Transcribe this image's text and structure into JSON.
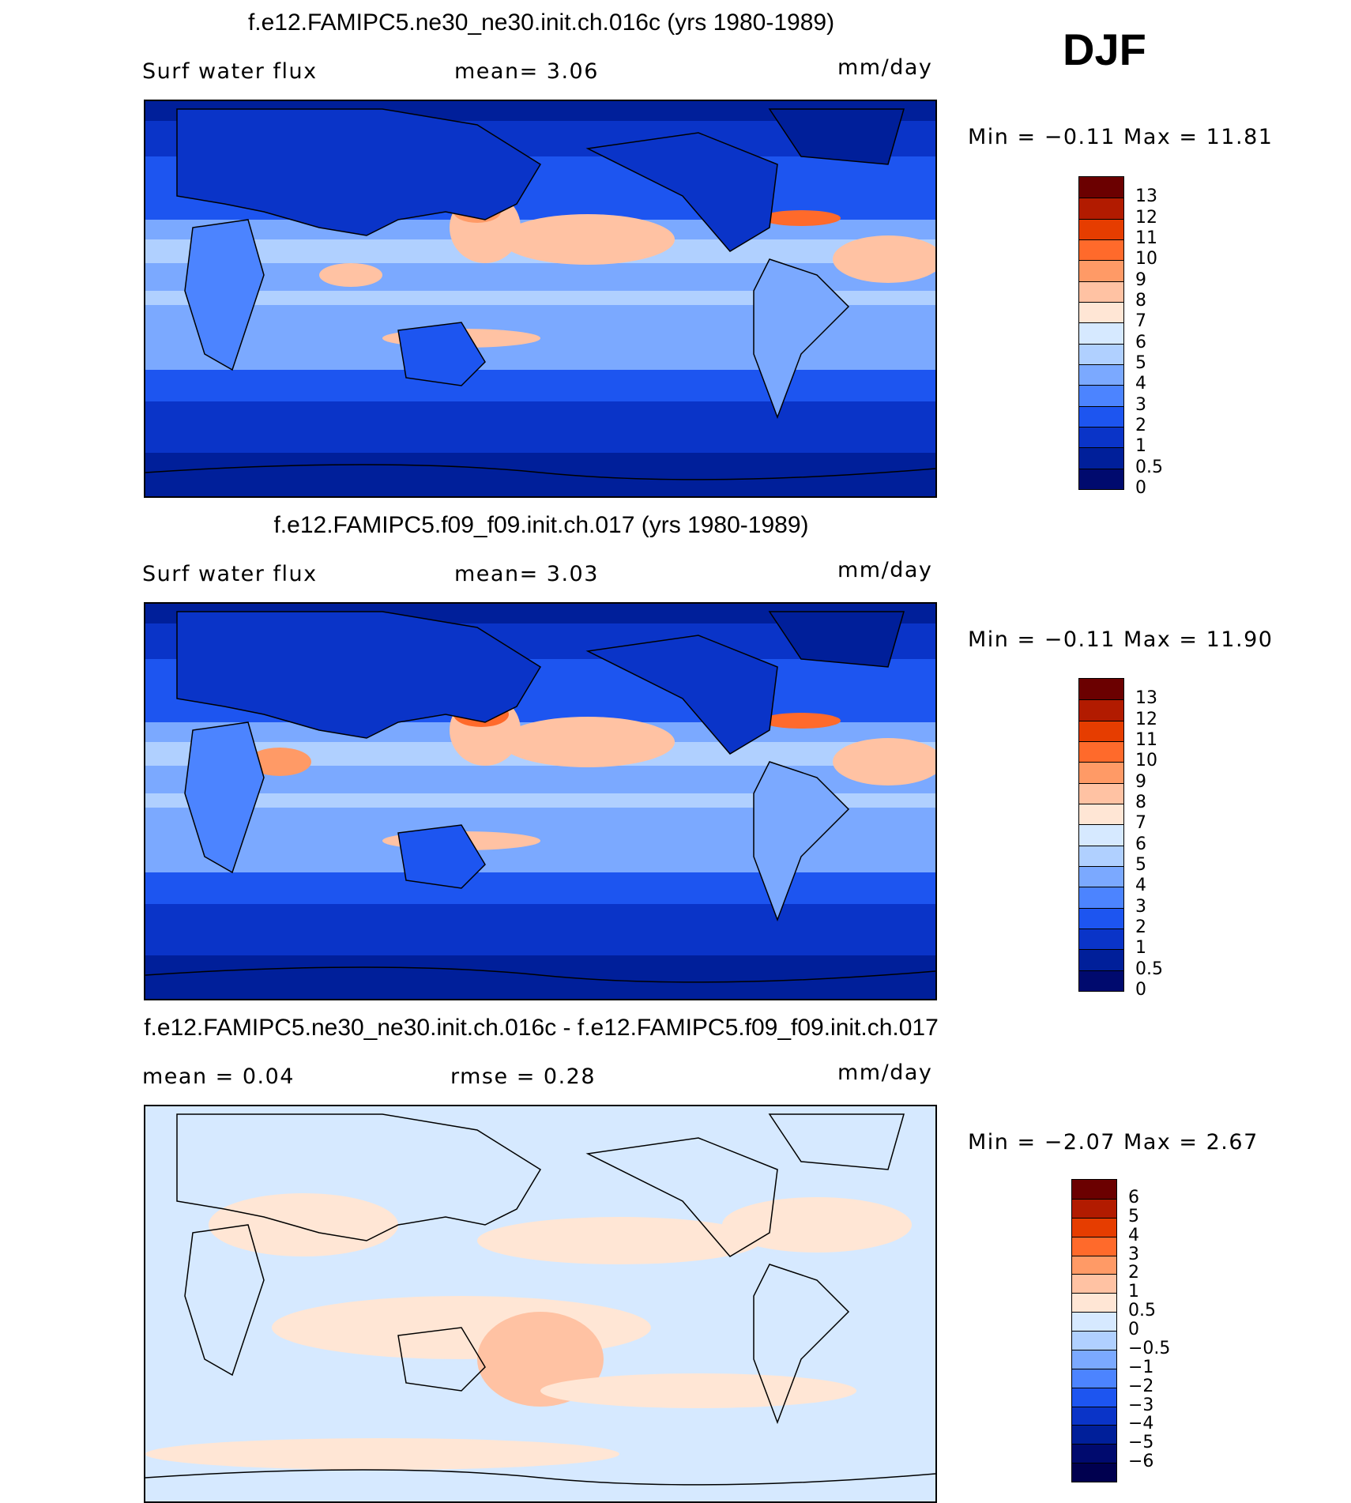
{
  "season": "DJF",
  "panels": [
    {
      "title": "f.e12.FAMIPC5.ne30_ne30.init.ch.016c (yrs 1980-1989)",
      "left_label": "Surf  water  flux",
      "center_label": "mean=    3.06",
      "units": "mm/day",
      "min_max": "Min  =   −0.11  Max  =    11.81",
      "colorbar": {
        "colors": [
          "#6b0000",
          "#b21b00",
          "#e63d00",
          "#ff6a2b",
          "#ff9a66",
          "#ffc2a3",
          "#ffe6d5",
          "#d6e9ff",
          "#b0d0ff",
          "#7ba9ff",
          "#4c84ff",
          "#1d55f0",
          "#0a34c8",
          "#001f9a",
          "#000a6e"
        ],
        "labels": [
          "13",
          "12",
          "11",
          "10",
          "9",
          "8",
          "7",
          "6",
          "5",
          "4",
          "3",
          "2",
          "1",
          "0.5",
          "0"
        ]
      }
    },
    {
      "title": "f.e12.FAMIPC5.f09_f09.init.ch.017 (yrs 1980-1989)",
      "left_label": "Surf  water  flux",
      "center_label": "mean=    3.03",
      "units": "mm/day",
      "min_max": "Min  =   −0.11  Max  =    11.90",
      "colorbar": {
        "colors": [
          "#6b0000",
          "#b21b00",
          "#e63d00",
          "#ff6a2b",
          "#ff9a66",
          "#ffc2a3",
          "#ffe6d5",
          "#d6e9ff",
          "#b0d0ff",
          "#7ba9ff",
          "#4c84ff",
          "#1d55f0",
          "#0a34c8",
          "#001f9a",
          "#000a6e"
        ],
        "labels": [
          "13",
          "12",
          "11",
          "10",
          "9",
          "8",
          "7",
          "6",
          "5",
          "4",
          "3",
          "2",
          "1",
          "0.5",
          "0"
        ]
      }
    },
    {
      "title": "f.e12.FAMIPC5.ne30_ne30.init.ch.016c - f.e12.FAMIPC5.f09_f09.init.ch.017",
      "left_label": "mean  =     0.04",
      "center_label": "rmse  =     0.28",
      "units": "mm/day",
      "min_max": "Min  =   −2.07  Max  =     2.67",
      "colorbar": {
        "colors": [
          "#6b0000",
          "#b21b00",
          "#e63d00",
          "#ff6a2b",
          "#ff9a66",
          "#ffc2a3",
          "#ffe6d5",
          "#d6e9ff",
          "#b0d0ff",
          "#7ba9ff",
          "#4c84ff",
          "#1d55f0",
          "#0a34c8",
          "#001f9a",
          "#000a6e",
          "#00004f"
        ],
        "labels": [
          "6",
          "5",
          "4",
          "3",
          "2",
          "1",
          "0.5",
          "0",
          "−0.5",
          "−1",
          "−2",
          "−3",
          "−4",
          "−5",
          "−6"
        ]
      }
    }
  ]
}
